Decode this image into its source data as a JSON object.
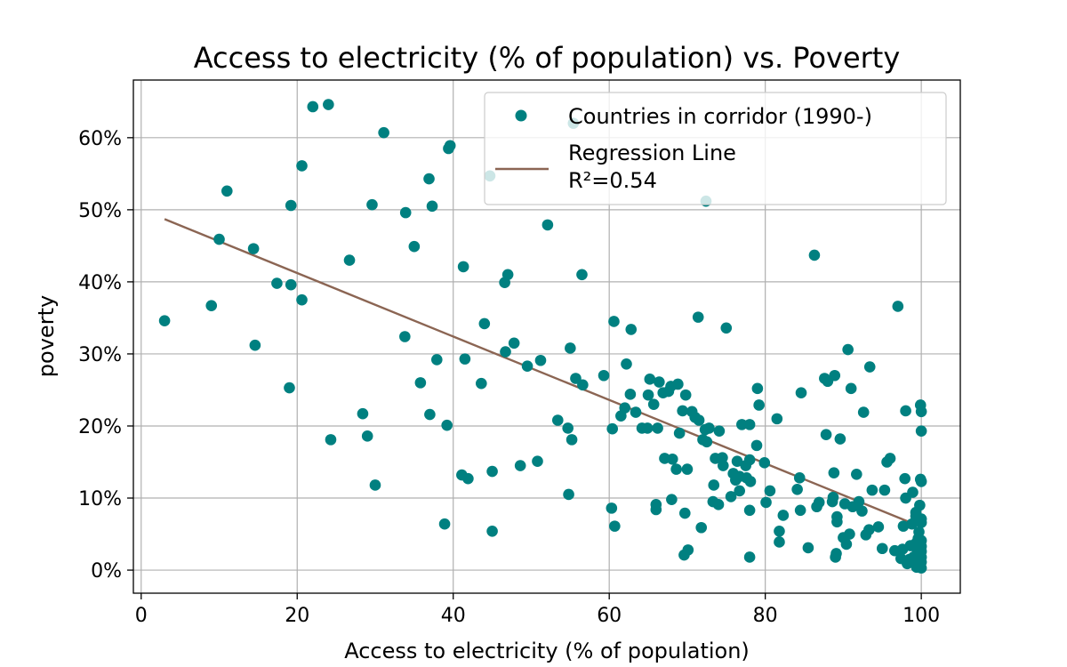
{
  "chart_data": {
    "type": "scatter",
    "title": "Access to electricity (% of population) vs. Poverty",
    "xlabel": "Access to electricity (% of population)",
    "ylabel": "poverty",
    "xlim": [
      -1,
      105
    ],
    "ylim": [
      -3.2,
      68
    ],
    "xticks": [
      0,
      20,
      40,
      60,
      80,
      100
    ],
    "xtick_labels": [
      "0",
      "20",
      "40",
      "60",
      "80",
      "100"
    ],
    "yticks": [
      0,
      10,
      20,
      30,
      40,
      50,
      60
    ],
    "ytick_labels": [
      "0%",
      "10%",
      "20%",
      "30%",
      "40%",
      "50%",
      "60%"
    ],
    "grid": true,
    "legend": {
      "placement": "top-right",
      "entries": [
        "Countries in corridor (1990-)",
        "Regression Line",
        "R²=0.54"
      ]
    },
    "colors": {
      "points": "#008080",
      "line": "#8B6553"
    },
    "series": [
      {
        "name": "Countries in corridor (1990-)",
        "kind": "scatter",
        "points": [
          [
            3,
            34.6
          ],
          [
            9,
            36.7
          ],
          [
            10,
            45.9
          ],
          [
            11,
            52.6
          ],
          [
            14.4,
            44.6
          ],
          [
            14.6,
            31.2
          ],
          [
            17.4,
            39.8
          ],
          [
            19,
            25.3
          ],
          [
            19.2,
            50.6
          ],
          [
            19.2,
            39.6
          ],
          [
            20.6,
            56.1
          ],
          [
            20.6,
            37.5
          ],
          [
            22,
            64.3
          ],
          [
            24,
            64.6
          ],
          [
            24.3,
            18.1
          ],
          [
            26.7,
            43
          ],
          [
            28.4,
            21.7
          ],
          [
            29,
            18.6
          ],
          [
            29.6,
            50.7
          ],
          [
            30,
            11.8
          ],
          [
            31.1,
            60.7
          ],
          [
            33.8,
            32.4
          ],
          [
            33.9,
            49.6
          ],
          [
            35,
            44.9
          ],
          [
            35.8,
            26
          ],
          [
            36.9,
            54.3
          ],
          [
            37,
            21.6
          ],
          [
            37.3,
            50.5
          ],
          [
            37.9,
            29.2
          ],
          [
            38.9,
            6.4
          ],
          [
            39.2,
            20.1
          ],
          [
            39.4,
            58.5
          ],
          [
            39.6,
            58.9
          ],
          [
            41.1,
            13.2
          ],
          [
            41.3,
            42.1
          ],
          [
            41.5,
            29.3
          ],
          [
            41.9,
            12.7
          ],
          [
            43.6,
            25.9
          ],
          [
            44,
            34.2
          ],
          [
            44.7,
            54.7
          ],
          [
            45,
            5.4
          ],
          [
            45,
            13.7
          ],
          [
            46.6,
            39.9
          ],
          [
            46.7,
            30.3
          ],
          [
            47,
            41
          ],
          [
            47.8,
            31.5
          ],
          [
            48.6,
            14.5
          ],
          [
            49.5,
            28.3
          ],
          [
            50.8,
            15.1
          ],
          [
            51.2,
            29.1
          ],
          [
            52.1,
            47.9
          ],
          [
            53.4,
            20.8
          ],
          [
            54.7,
            19.7
          ],
          [
            54.8,
            10.5
          ],
          [
            55,
            30.8
          ],
          [
            55.2,
            18.1
          ],
          [
            55.4,
            62
          ],
          [
            55.7,
            26.6
          ],
          [
            56.5,
            41
          ],
          [
            56.6,
            25.7
          ],
          [
            59.3,
            27
          ],
          [
            60.3,
            8.6
          ],
          [
            60.4,
            19.6
          ],
          [
            60.6,
            34.5
          ],
          [
            60.7,
            6.1
          ],
          [
            61.5,
            21.4
          ],
          [
            62,
            22.5
          ],
          [
            62.2,
            28.6
          ],
          [
            62.7,
            24.4
          ],
          [
            62.8,
            33.4
          ],
          [
            63.4,
            21.9
          ],
          [
            64.2,
            19.7
          ],
          [
            64.9,
            19.7
          ],
          [
            65,
            24.3
          ],
          [
            65.2,
            26.5
          ],
          [
            65.7,
            23
          ],
          [
            66,
            8.4
          ],
          [
            66,
            9.1
          ],
          [
            66.2,
            19.7
          ],
          [
            66.4,
            26.1
          ],
          [
            66.9,
            24.6
          ],
          [
            67.1,
            15.5
          ],
          [
            67.6,
            24.8
          ],
          [
            67.9,
            25.5
          ],
          [
            68,
            9.8
          ],
          [
            68.1,
            15.4
          ],
          [
            68.6,
            14
          ],
          [
            68.8,
            25.8
          ],
          [
            69,
            19
          ],
          [
            69.4,
            22.1
          ],
          [
            69.6,
            2.1
          ],
          [
            69.7,
            7.9
          ],
          [
            69.8,
            24.3
          ],
          [
            70,
            14
          ],
          [
            70.1,
            2.8
          ],
          [
            70.6,
            22
          ],
          [
            71,
            21.2
          ],
          [
            71.4,
            35.1
          ],
          [
            71.5,
            20.8
          ],
          [
            71.8,
            5.9
          ],
          [
            72,
            18.1
          ],
          [
            72.3,
            19.5
          ],
          [
            72.4,
            51.2
          ],
          [
            72.5,
            17.8
          ],
          [
            72.8,
            19.7
          ],
          [
            73.3,
            9.5
          ],
          [
            73.4,
            11.8
          ],
          [
            73.6,
            15.5
          ],
          [
            74,
            9.1
          ],
          [
            74.1,
            19.3
          ],
          [
            74.5,
            15.6
          ],
          [
            74.6,
            14.5
          ],
          [
            75,
            33.6
          ],
          [
            75.6,
            10.2
          ],
          [
            75.9,
            13.4
          ],
          [
            76.2,
            12.5
          ],
          [
            76.4,
            15.1
          ],
          [
            76.7,
            13
          ],
          [
            76.7,
            11
          ],
          [
            77,
            20.2
          ],
          [
            77.5,
            14.5
          ],
          [
            77.6,
            12.8
          ],
          [
            78,
            15.3
          ],
          [
            78,
            20.2
          ],
          [
            78,
            8.3
          ],
          [
            78,
            1.8
          ],
          [
            78.1,
            12.3
          ],
          [
            78.9,
            17.3
          ],
          [
            79,
            25.2
          ],
          [
            79.2,
            22.9
          ],
          [
            79.9,
            14.9
          ],
          [
            80.1,
            9.4
          ],
          [
            80.6,
            11
          ],
          [
            81.5,
            21
          ],
          [
            81.8,
            3.9
          ],
          [
            81.8,
            5.4
          ],
          [
            82.3,
            7.6
          ],
          [
            84.1,
            11.2
          ],
          [
            84.4,
            12.8
          ],
          [
            84.5,
            8.3
          ],
          [
            84.6,
            24.6
          ],
          [
            85.5,
            3.1
          ],
          [
            86.3,
            43.7
          ],
          [
            86.6,
            8.8
          ],
          [
            86.9,
            9.4
          ],
          [
            87.6,
            26.6
          ],
          [
            87.8,
            18.8
          ],
          [
            88,
            26.2
          ],
          [
            88.6,
            9.5
          ],
          [
            88.7,
            10.1
          ],
          [
            88.8,
            13.5
          ],
          [
            88.9,
            27
          ],
          [
            89,
            1.8
          ],
          [
            89.1,
            2.3
          ],
          [
            89.2,
            6.7
          ],
          [
            89.2,
            7.4
          ],
          [
            89.6,
            18.2
          ],
          [
            90,
            4.5
          ],
          [
            90.2,
            9.2
          ],
          [
            90.4,
            3.6
          ],
          [
            90.6,
            30.6
          ],
          [
            90.8,
            5
          ],
          [
            91,
            25.2
          ],
          [
            91.2,
            8.8
          ],
          [
            91.7,
            13.3
          ],
          [
            92,
            9.5
          ],
          [
            92.4,
            8.2
          ],
          [
            92.6,
            21.9
          ],
          [
            92.9,
            4.9
          ],
          [
            93.3,
            5.6
          ],
          [
            93.4,
            28.2
          ],
          [
            93.7,
            11.1
          ],
          [
            94.5,
            6
          ],
          [
            95,
            3
          ],
          [
            95.3,
            11.1
          ],
          [
            95.6,
            15
          ],
          [
            96,
            15.5
          ],
          [
            96.6,
            2.7
          ],
          [
            97,
            36.6
          ],
          [
            97.4,
            1.6
          ],
          [
            97.6,
            2.9
          ],
          [
            97.7,
            6.1
          ],
          [
            97.9,
            12.7
          ],
          [
            98,
            10
          ],
          [
            98,
            22.1
          ],
          [
            98.2,
            0.9
          ],
          [
            98.5,
            1.5
          ],
          [
            98.6,
            3.4
          ],
          [
            98.8,
            6.4
          ],
          [
            98.9,
            10.8
          ],
          [
            99,
            1.8
          ],
          [
            99.3,
            3.7
          ],
          [
            99.3,
            7.5
          ],
          [
            99.3,
            8
          ],
          [
            99.4,
            0.4
          ],
          [
            99.5,
            2.6
          ],
          [
            99.6,
            4.4
          ],
          [
            99.7,
            5.3
          ],
          [
            99.8,
            9
          ],
          [
            99.9,
            12.6
          ],
          [
            99.9,
            22.9
          ],
          [
            100,
            0.3
          ],
          [
            100,
            1.1
          ],
          [
            100,
            1.8
          ],
          [
            100,
            2.6
          ],
          [
            100,
            3.3
          ],
          [
            100,
            4.1
          ],
          [
            100,
            6.6
          ],
          [
            100,
            7.1
          ],
          [
            100,
            12.3
          ],
          [
            100,
            19.3
          ],
          [
            100,
            22
          ]
        ]
      },
      {
        "name": "Regression Line",
        "kind": "line",
        "points": [
          [
            3,
            48.7
          ],
          [
            100,
            6.0
          ]
        ]
      }
    ]
  }
}
